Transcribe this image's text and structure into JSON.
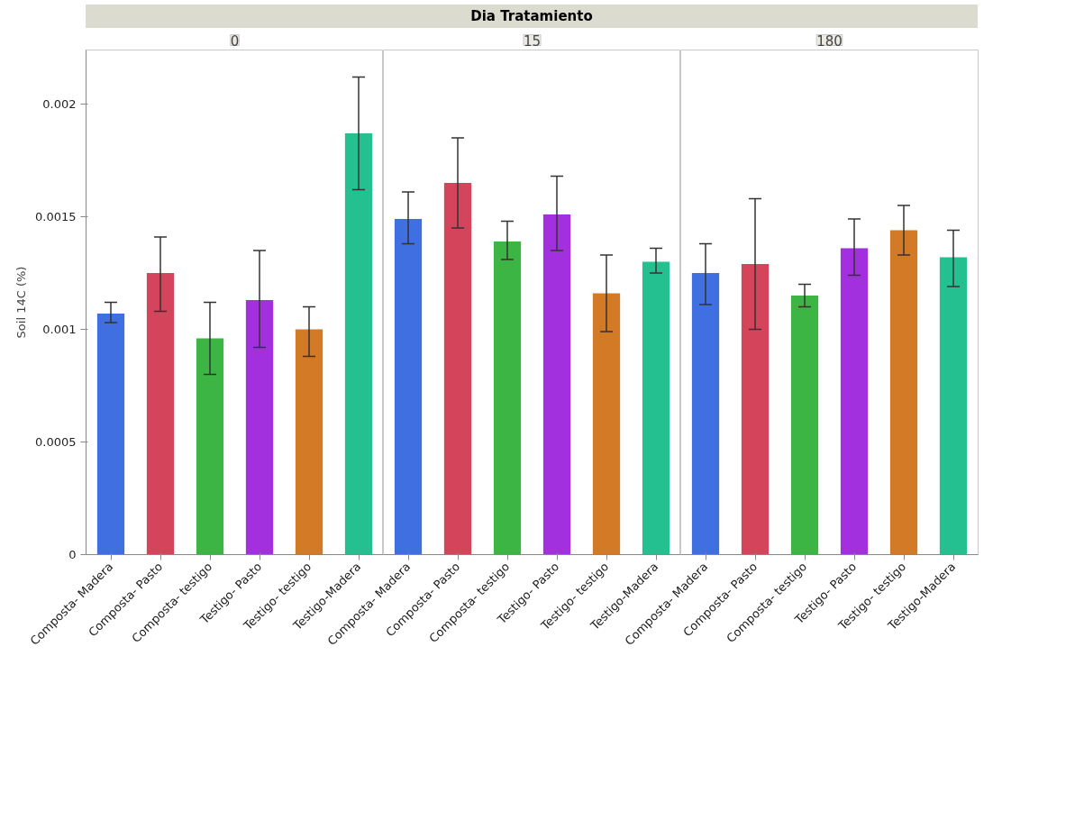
{
  "chart_data": [
    {
      "type": "bar",
      "title": "0",
      "annotations": [
        "Dia Tratamiento"
      ],
      "ylabel": "Soil 14C (%)",
      "categories": [
        "Composta- Madera",
        "Composta- Pasto",
        "Composta- testigo",
        "Testigo- Pasto",
        "Testigo- testigo",
        "Testigo-Madera"
      ],
      "colors": [
        "#3f6fe0",
        "#d4455b",
        "#3cb544",
        "#a230de",
        "#d27a26",
        "#25c08f"
      ],
      "values": [
        0.00107,
        0.00125,
        0.00096,
        0.00113,
        0.001,
        0.00187
      ],
      "errors": [
        [
          0.00103,
          0.00112
        ],
        [
          0.00108,
          0.00141
        ],
        [
          0.0008,
          0.00112
        ],
        [
          0.00092,
          0.00135
        ],
        [
          0.00088,
          0.0011
        ],
        [
          0.00162,
          0.00212
        ]
      ],
      "ylim": [
        0,
        0.00224
      ],
      "yticks": [
        0,
        0.0005,
        0.001,
        0.0015,
        0.002
      ],
      "grid": false
    },
    {
      "type": "bar",
      "title": "15",
      "categories": [
        "Composta- Madera",
        "Composta- Pasto",
        "Composta- testigo",
        "Testigo- Pasto",
        "Testigo- testigo",
        "Testigo-Madera"
      ],
      "colors": [
        "#3f6fe0",
        "#d4455b",
        "#3cb544",
        "#a230de",
        "#d27a26",
        "#25c08f"
      ],
      "values": [
        0.00149,
        0.00165,
        0.00139,
        0.00151,
        0.00116,
        0.0013
      ],
      "errors": [
        [
          0.00138,
          0.00161
        ],
        [
          0.00145,
          0.00185
        ],
        [
          0.00131,
          0.00148
        ],
        [
          0.00135,
          0.00168
        ],
        [
          0.00099,
          0.00133
        ],
        [
          0.00125,
          0.00136
        ]
      ],
      "ylim": [
        0,
        0.00224
      ],
      "yticks": [
        0,
        0.0005,
        0.001,
        0.0015,
        0.002
      ],
      "grid": false,
      "tick_labels": "x"
    },
    {
      "type": "bar",
      "title": "180",
      "categories": [
        "Composta- Madera",
        "Composta- Pasto",
        "Composta- testigo",
        "Testigo- Pasto",
        "Testigo- testigo",
        "Testigo-Madera"
      ],
      "colors": [
        "#3f6fe0",
        "#d4455b",
        "#3cb544",
        "#a230de",
        "#d27a26",
        "#25c08f"
      ],
      "values": [
        0.00125,
        0.00129,
        0.00115,
        0.00136,
        0.00144,
        0.00132
      ],
      "errors": [
        [
          0.00111,
          0.00138
        ],
        [
          0.001,
          0.00158
        ],
        [
          0.0011,
          0.0012
        ],
        [
          0.00124,
          0.00149
        ],
        [
          0.00133,
          0.00155
        ],
        [
          0.00119,
          0.00144
        ]
      ],
      "ylim": [
        0,
        0.00224
      ],
      "yticks": [
        0,
        0.0005,
        0.001,
        0.0015,
        0.002
      ],
      "grid": false,
      "tick_labels": "x"
    }
  ]
}
